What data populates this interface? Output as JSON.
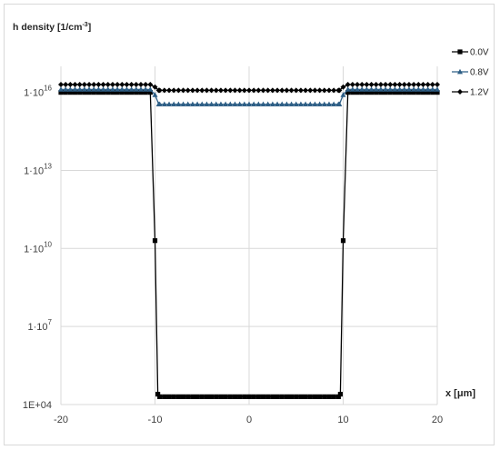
{
  "chart_data": {
    "type": "line",
    "ylabel": "h density [1/cm",
    "ylabel_sup": "-3",
    "ylabel_end": "]",
    "xlabel": "x [μm]",
    "y_scale": "log",
    "xlim": [
      -20,
      20
    ],
    "ylim": [
      10000,
      100000000000000000
    ],
    "x_ticks": [
      "-20",
      "-10",
      "0",
      "10",
      "20"
    ],
    "x_tick_values": [
      -20,
      -10,
      0,
      10,
      20
    ],
    "y_ticks": [
      {
        "base": "1E+04",
        "exp": "",
        "value": 10000
      },
      {
        "base": "1·10",
        "exp": "7",
        "value": 10000000
      },
      {
        "base": "1·10",
        "exp": "10",
        "value": 10000000000
      },
      {
        "base": "1·10",
        "exp": "13",
        "value": 10000000000000
      },
      {
        "base": "1·10",
        "exp": "16",
        "value": 10000000000000000
      }
    ],
    "grid": true,
    "legend_position": "top-right",
    "series": [
      {
        "name": "0.0V",
        "marker": "square",
        "color": "#000000",
        "points": [
          {
            "x": -20,
            "y": 1e+16
          },
          {
            "x": -10.5,
            "y": 1e+16
          },
          {
            "x": -10.0,
            "y": 20000000000.0
          },
          {
            "x": -9.7,
            "y": 25000.0
          },
          {
            "x": -9.5,
            "y": 20000.0
          },
          {
            "x": 0,
            "y": 20000.0
          },
          {
            "x": 9.5,
            "y": 20000.0
          },
          {
            "x": 9.7,
            "y": 25000.0
          },
          {
            "x": 10.0,
            "y": 20000000000.0
          },
          {
            "x": 10.5,
            "y": 1e+16
          },
          {
            "x": 20,
            "y": 1e+16
          }
        ]
      },
      {
        "name": "0.8V",
        "marker": "triangle",
        "color": "#2e5f86",
        "points": [
          {
            "x": -20,
            "y": 1.3e+16
          },
          {
            "x": -10.5,
            "y": 1.3e+16
          },
          {
            "x": -10.0,
            "y": 8000000000000000.0
          },
          {
            "x": -9.6,
            "y": 3500000000000000.0
          },
          {
            "x": 0,
            "y": 3500000000000000.0
          },
          {
            "x": 9.6,
            "y": 3500000000000000.0
          },
          {
            "x": 10.0,
            "y": 8000000000000000.0
          },
          {
            "x": 10.5,
            "y": 1.3e+16
          },
          {
            "x": 20,
            "y": 1.3e+16
          }
        ]
      },
      {
        "name": "1.2V",
        "marker": "diamond",
        "color": "#000000",
        "points": [
          {
            "x": -20,
            "y": 2e+16
          },
          {
            "x": -10.5,
            "y": 2e+16
          },
          {
            "x": -10.0,
            "y": 1.6e+16
          },
          {
            "x": -9.6,
            "y": 1.2e+16
          },
          {
            "x": 0,
            "y": 1.2e+16
          },
          {
            "x": 9.6,
            "y": 1.2e+16
          },
          {
            "x": 10.0,
            "y": 1.6e+16
          },
          {
            "x": 10.5,
            "y": 2e+16
          },
          {
            "x": 20,
            "y": 2e+16
          }
        ]
      }
    ]
  }
}
